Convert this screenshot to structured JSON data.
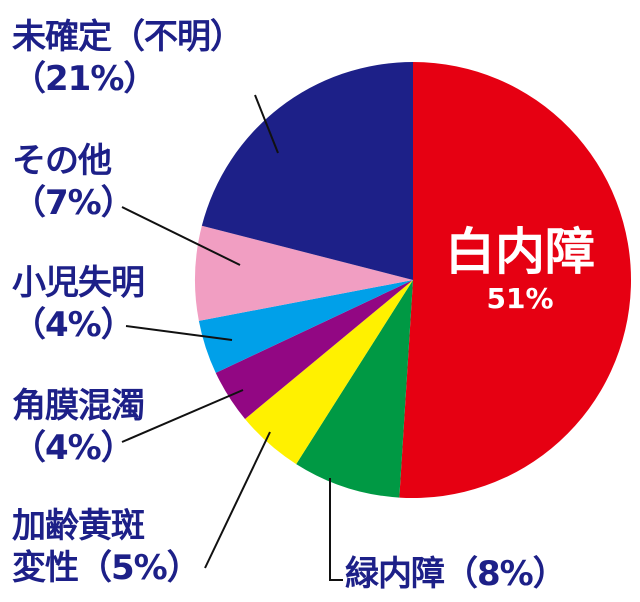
{
  "chart_data": {
    "type": "pie",
    "categories": [
      "白内障",
      "緑内障",
      "加齢黄斑変性",
      "角膜混濁",
      "小児失明",
      "その他",
      "未確定（不明）"
    ],
    "values": [
      51,
      8,
      5,
      4,
      4,
      7,
      21
    ],
    "value_labels": [
      "51%",
      "（8%）",
      "（5%）",
      "（4%）",
      "（4%）",
      "（7%）",
      "（21%）"
    ],
    "colors": [
      "#e60012",
      "#009944",
      "#fff100",
      "#920783",
      "#00a0e9",
      "#f19ec2",
      "#1d2088"
    ]
  }
}
